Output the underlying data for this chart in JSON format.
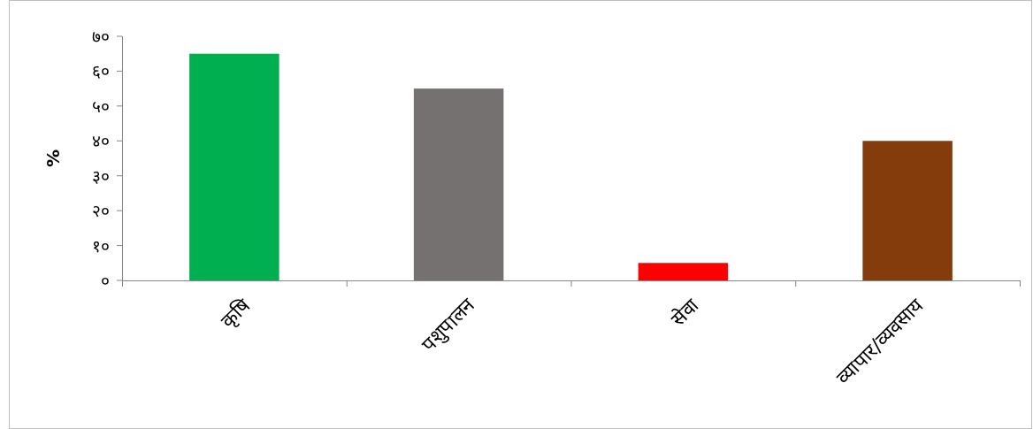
{
  "chart_data": {
    "type": "bar",
    "ylabel": "%",
    "categories": [
      "कृषि",
      "पशुपालन",
      "सेवा",
      "व्यापार/व्यवसाय"
    ],
    "values": [
      65,
      55,
      5,
      40
    ],
    "colors": [
      "#00b050",
      "#757171",
      "#ff0000",
      "#843c0c"
    ],
    "ylim": [
      0,
      70
    ],
    "yticks": [
      {
        "value": 0,
        "label": "०"
      },
      {
        "value": 10,
        "label": "१०"
      },
      {
        "value": 20,
        "label": "२०"
      },
      {
        "value": 30,
        "label": "३०"
      },
      {
        "value": 40,
        "label": "४०"
      },
      {
        "value": 50,
        "label": "५०"
      },
      {
        "value": 60,
        "label": "६०"
      },
      {
        "value": 70,
        "label": "७०"
      }
    ]
  }
}
